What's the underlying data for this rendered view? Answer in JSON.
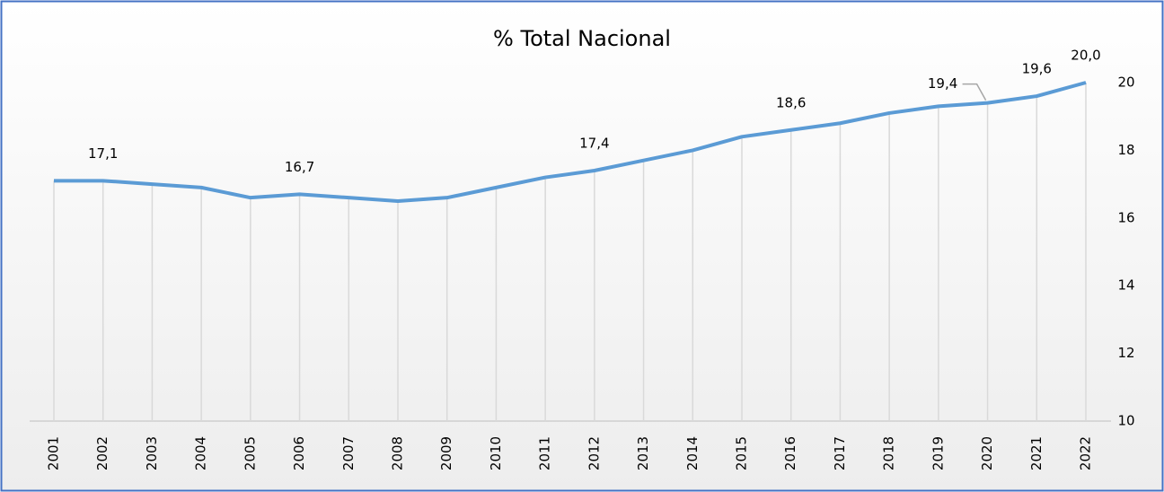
{
  "chart_data": {
    "type": "line",
    "title": "% Total Nacional",
    "categories": [
      "2001",
      "2002",
      "2003",
      "2004",
      "2005",
      "2006",
      "2007",
      "2008",
      "2009",
      "2010",
      "2011",
      "2012",
      "2013",
      "2014",
      "2015",
      "2016",
      "2017",
      "2018",
      "2019",
      "2020",
      "2021",
      "2022"
    ],
    "series": [
      {
        "name": "% Total Nacional",
        "color": "#5b9bd5",
        "values": [
          17.1,
          17.1,
          17.0,
          16.9,
          16.6,
          16.7,
          16.6,
          16.5,
          16.6,
          16.9,
          17.2,
          17.4,
          17.7,
          18.0,
          18.4,
          18.6,
          18.8,
          19.1,
          19.3,
          19.4,
          19.6,
          20.0
        ],
        "value_labels": [
          null,
          "17,1",
          null,
          null,
          null,
          "16,7",
          null,
          null,
          null,
          null,
          null,
          "17,4",
          null,
          null,
          null,
          "18,6",
          null,
          null,
          null,
          "19,4",
          "19,6",
          "20,0"
        ]
      }
    ],
    "ylim": [
      10,
      20
    ],
    "yticks": [
      10,
      12,
      14,
      16,
      18,
      20
    ],
    "y_axis_side": "right",
    "drop_lines": true
  }
}
